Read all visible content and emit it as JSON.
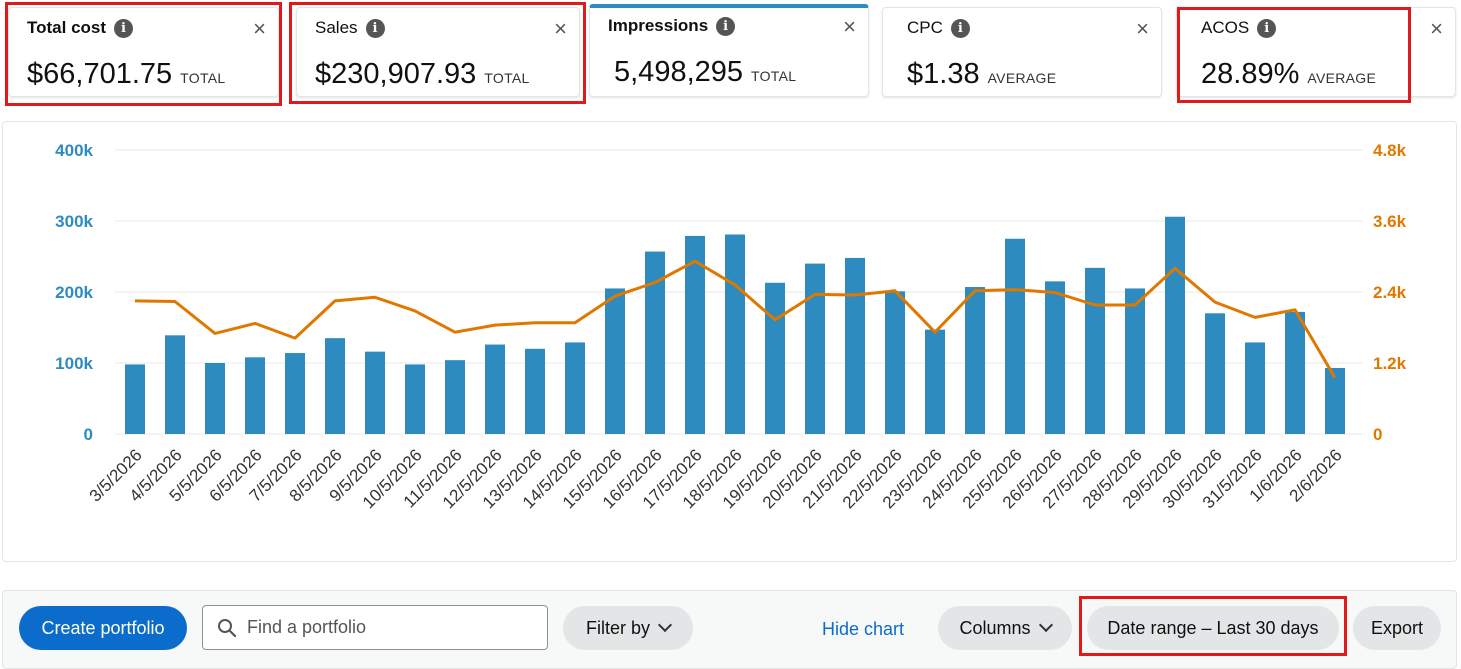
{
  "metrics": [
    {
      "title": "Total cost",
      "value": "$66,701.75",
      "unit": "TOTAL"
    },
    {
      "title": "Sales",
      "value": "$230,907.93",
      "unit": "TOTAL"
    },
    {
      "title": "Impressions",
      "value": "5,498,295",
      "unit": "TOTAL"
    },
    {
      "title": "CPC",
      "value": "$1.38",
      "unit": "AVERAGE"
    },
    {
      "title": "ACOS",
      "value": "28.89%",
      "unit": "AVERAGE"
    }
  ],
  "info_glyph": "i",
  "close_glyph": "×",
  "colors": {
    "bar": "#2e8bc0",
    "line": "#e07800",
    "highlight": "#e01a1a",
    "primary": "#0b6ccb"
  },
  "chart_data": {
    "type": "bar",
    "categories": [
      "3/5/2026",
      "4/5/2026",
      "5/5/2026",
      "6/5/2026",
      "7/5/2026",
      "8/5/2026",
      "9/5/2026",
      "10/5/2026",
      "11/5/2026",
      "12/5/2026",
      "13/5/2026",
      "14/5/2026",
      "15/5/2026",
      "16/5/2026",
      "17/5/2026",
      "18/5/2026",
      "19/5/2026",
      "20/5/2026",
      "21/5/2026",
      "22/5/2026",
      "23/5/2026",
      "24/5/2026",
      "25/5/2026",
      "26/5/2026",
      "27/5/2026",
      "28/5/2026",
      "29/5/2026",
      "30/5/2026",
      "31/5/2026",
      "1/6/2026",
      "2/6/2026"
    ],
    "series": [
      {
        "axis": "left",
        "type": "bar",
        "values": [
          98000,
          139000,
          100000,
          108000,
          114000,
          135000,
          116000,
          98000,
          104000,
          126000,
          120000,
          129000,
          205000,
          257000,
          279000,
          281000,
          213000,
          240000,
          248000,
          201000,
          147000,
          207000,
          275000,
          215000,
          234000,
          205000,
          306000,
          170000,
          129000,
          172000,
          93000
        ]
      },
      {
        "axis": "right",
        "type": "line",
        "values": [
          2250,
          2240,
          1700,
          1870,
          1620,
          2250,
          2310,
          2080,
          1720,
          1840,
          1880,
          1880,
          2330,
          2560,
          2920,
          2520,
          1930,
          2360,
          2350,
          2420,
          1720,
          2420,
          2440,
          2390,
          2180,
          2180,
          2800,
          2230,
          1970,
          2100,
          950
        ]
      }
    ],
    "y_left": {
      "ticks": [
        "0",
        "100k",
        "200k",
        "300k",
        "400k"
      ],
      "lim": [
        0,
        400000
      ]
    },
    "y_right": {
      "ticks": [
        "0",
        "1.2k",
        "2.4k",
        "3.6k",
        "4.8k"
      ],
      "lim": [
        0,
        4800
      ]
    },
    "grid": true
  },
  "toolbar": {
    "create_label": "Create portfolio",
    "search_placeholder": "Find a portfolio",
    "filter_label": "Filter by",
    "hide_chart_label": "Hide chart",
    "columns_label": "Columns",
    "date_range_label": "Date range – Last 30 days",
    "export_label": "Export"
  }
}
